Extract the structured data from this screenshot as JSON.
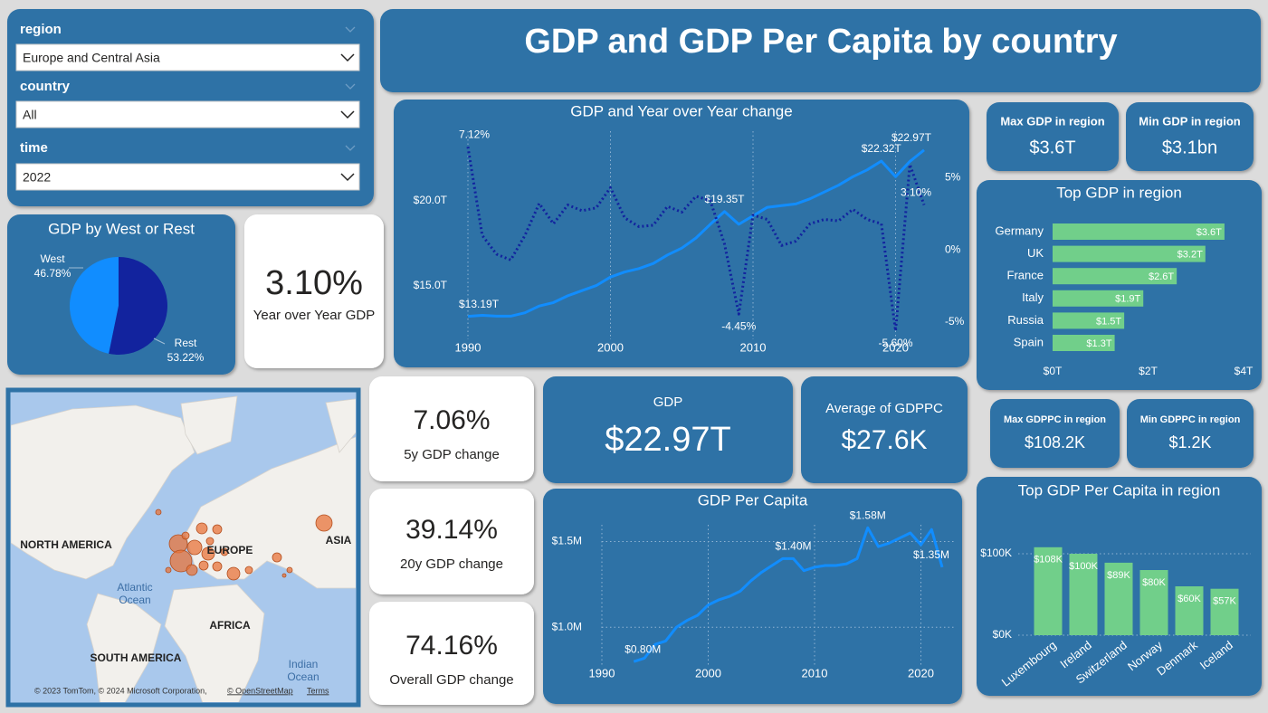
{
  "header": {
    "title": "GDP and GDP Per Capita by country"
  },
  "slicers": [
    {
      "label": "region",
      "value": "Europe and Central Asia"
    },
    {
      "label": "country",
      "value": "All"
    },
    {
      "label": "time",
      "value": "2022"
    }
  ],
  "kpi_cards": [
    {
      "label": "Max GDP in region",
      "value": "$3.6T"
    },
    {
      "label": "Min GDP in region",
      "value": "$3.1bn"
    },
    {
      "value": "3.10%",
      "label": "Year over Year GDP"
    },
    {
      "value": "7.06%",
      "label": "5y GDP change"
    },
    {
      "value": "39.14%",
      "label": "20y GDP change"
    },
    {
      "value": "74.16%",
      "label": "Overall GDP change"
    },
    {
      "label": "GDP",
      "value": "$22.97T"
    },
    {
      "label": "Average of GDPPC",
      "value": "$27.6K"
    },
    {
      "label": "Max GDPPC in region",
      "value": "$108.2K"
    },
    {
      "label": "Min GDPPC in region",
      "value": "$1.2K"
    }
  ],
  "chart_data": [
    {
      "type": "line",
      "title": "GDP and Year over Year change",
      "x": [
        1990,
        1991,
        1992,
        1993,
        1994,
        1995,
        1996,
        1997,
        1998,
        1999,
        2000,
        2001,
        2002,
        2003,
        2004,
        2005,
        2006,
        2007,
        2008,
        2009,
        2010,
        2011,
        2012,
        2013,
        2014,
        2015,
        2016,
        2017,
        2018,
        2019,
        2020,
        2021,
        2022
      ],
      "series": [
        {
          "color": "#118dff",
          "line_style": "solid",
          "values": [
            13.19,
            13.25,
            13.2,
            13.2,
            13.4,
            13.8,
            14.0,
            14.4,
            14.7,
            15.0,
            15.5,
            15.8,
            16.0,
            16.3,
            16.8,
            17.2,
            17.8,
            18.6,
            19.35,
            18.6,
            19.1,
            19.6,
            19.7,
            19.8,
            20.1,
            20.5,
            20.9,
            21.4,
            21.8,
            22.32,
            21.4,
            22.3,
            22.97
          ],
          "value_labels": [
            "$13.19T",
            null,
            null,
            null,
            null,
            null,
            null,
            null,
            null,
            null,
            null,
            null,
            null,
            null,
            null,
            null,
            null,
            null,
            "$19.35T",
            null,
            null,
            null,
            null,
            null,
            null,
            null,
            null,
            null,
            null,
            "$22.32T",
            null,
            null,
            "$22.97T"
          ]
        },
        {
          "color": "#12239e",
          "line_style": "dotted",
          "axis": "y2",
          "values": [
            7.12,
            1.0,
            -0.3,
            -0.7,
            1.0,
            3.2,
            1.8,
            3.1,
            2.7,
            2.9,
            4.3,
            2.2,
            1.6,
            1.7,
            3.0,
            2.6,
            3.7,
            3.4,
            0.4,
            -4.45,
            2.4,
            2.1,
            0.3,
            0.6,
            1.8,
            2.1,
            2.0,
            2.8,
            2.1,
            1.8,
            -5.6,
            5.9,
            3.1
          ],
          "value_labels": [
            "7.12%",
            null,
            null,
            null,
            null,
            null,
            null,
            null,
            null,
            null,
            null,
            null,
            null,
            null,
            null,
            null,
            null,
            null,
            null,
            "-4.45%",
            null,
            null,
            null,
            null,
            null,
            null,
            null,
            null,
            null,
            null,
            "-5.60%",
            null,
            "3.10%"
          ]
        }
      ],
      "xlim": [
        1990,
        2022
      ],
      "xticks": [
        1990,
        2000,
        2010,
        2020
      ],
      "ylim": [
        12,
        24.5
      ],
      "yticks": [
        {
          "value": 15,
          "label": "$15.0T"
        },
        {
          "value": 20,
          "label": "$20.0T"
        }
      ],
      "y2lim": [
        -6,
        8.7
      ],
      "y2ticks": [
        {
          "value": 5,
          "label": "5%"
        },
        {
          "value": 0,
          "label": "0%"
        },
        {
          "value": -5,
          "label": "-5%"
        }
      ],
      "grid": "x"
    },
    {
      "type": "pie",
      "title": "GDP by West or Rest",
      "categories": [
        "West",
        "Rest"
      ],
      "values": [
        46.78,
        53.22
      ],
      "value_labels": [
        "46.78%",
        "53.22%"
      ],
      "colors": [
        "#118dff",
        "#12239e"
      ]
    },
    {
      "type": "bar",
      "orientation": "horizontal",
      "title": "Top GDP in region",
      "categories": [
        "Germany",
        "UK",
        "France",
        "Italy",
        "Russia",
        "Spain"
      ],
      "values": [
        3.6,
        3.2,
        2.6,
        1.9,
        1.5,
        1.3
      ],
      "value_labels": [
        "$3.6T",
        "$3.2T",
        "$2.6T",
        "$1.9T",
        "$1.5T",
        "$1.3T"
      ],
      "color": "#71cf8a",
      "xlim": [
        0,
        4
      ],
      "xticks": [
        {
          "value": 0,
          "label": "$0T"
        },
        {
          "value": 2,
          "label": "$2T"
        },
        {
          "value": 4,
          "label": "$4T"
        }
      ]
    },
    {
      "type": "line",
      "title": "GDP Per Capita",
      "x": [
        1993,
        1994,
        1995,
        1996,
        1997,
        1998,
        1999,
        2000,
        2001,
        2002,
        2003,
        2004,
        2005,
        2006,
        2007,
        2008,
        2009,
        2010,
        2011,
        2012,
        2013,
        2014,
        2015,
        2016,
        2017,
        2018,
        2019,
        2020,
        2021,
        2022
      ],
      "series": [
        {
          "color": "#118dff",
          "line_style": "solid",
          "values": [
            0.8,
            0.82,
            0.9,
            0.92,
            1.0,
            1.04,
            1.07,
            1.13,
            1.16,
            1.18,
            1.21,
            1.27,
            1.32,
            1.36,
            1.4,
            1.4,
            1.33,
            1.35,
            1.36,
            1.36,
            1.37,
            1.4,
            1.58,
            1.47,
            1.49,
            1.52,
            1.55,
            1.48,
            1.57,
            1.35
          ],
          "value_labels": [
            "$0.80M",
            null,
            null,
            null,
            null,
            null,
            null,
            null,
            null,
            null,
            null,
            null,
            null,
            null,
            null,
            "$1.40M",
            null,
            null,
            null,
            null,
            null,
            null,
            "$1.58M",
            null,
            null,
            null,
            null,
            null,
            null,
            "$1.35M"
          ]
        }
      ],
      "xlim": [
        1990,
        2022
      ],
      "xticks": [
        1990,
        2000,
        2010,
        2020
      ],
      "ylim": [
        0.78,
        1.65
      ],
      "yticks": [
        {
          "value": 1.0,
          "label": "$1.0M"
        },
        {
          "value": 1.5,
          "label": "$1.5M"
        }
      ],
      "grid": "both"
    },
    {
      "type": "bar",
      "orientation": "vertical",
      "title": "Top GDP Per Capita in region",
      "categories": [
        "Luxembourg",
        "Ireland",
        "Switzerland",
        "Norway",
        "Denmark",
        "Iceland"
      ],
      "values": [
        108,
        100,
        89,
        80,
        60,
        57
      ],
      "value_labels": [
        "$108K",
        "$100K",
        "$89K",
        "$80K",
        "$60K",
        "$57K"
      ],
      "color": "#71cf8a",
      "ylim": [
        0,
        110
      ],
      "yticks": [
        {
          "value": 0,
          "label": "$0K"
        },
        {
          "value": 100,
          "label": "$100K"
        }
      ],
      "grid": "y"
    }
  ],
  "map": {
    "labels": [
      "NORTH AMERICA",
      "EUROPE",
      "ASIA",
      "AFRICA",
      "SOUTH AMERICA"
    ],
    "oceans": [
      [
        "Atlantic",
        "Ocean"
      ],
      [
        "Indian",
        "Ocean"
      ]
    ],
    "attribution": [
      "© 2023 TomTom, © 2024 Microsoft Corporation,",
      "© OpenStreetMap",
      "Terms"
    ]
  }
}
